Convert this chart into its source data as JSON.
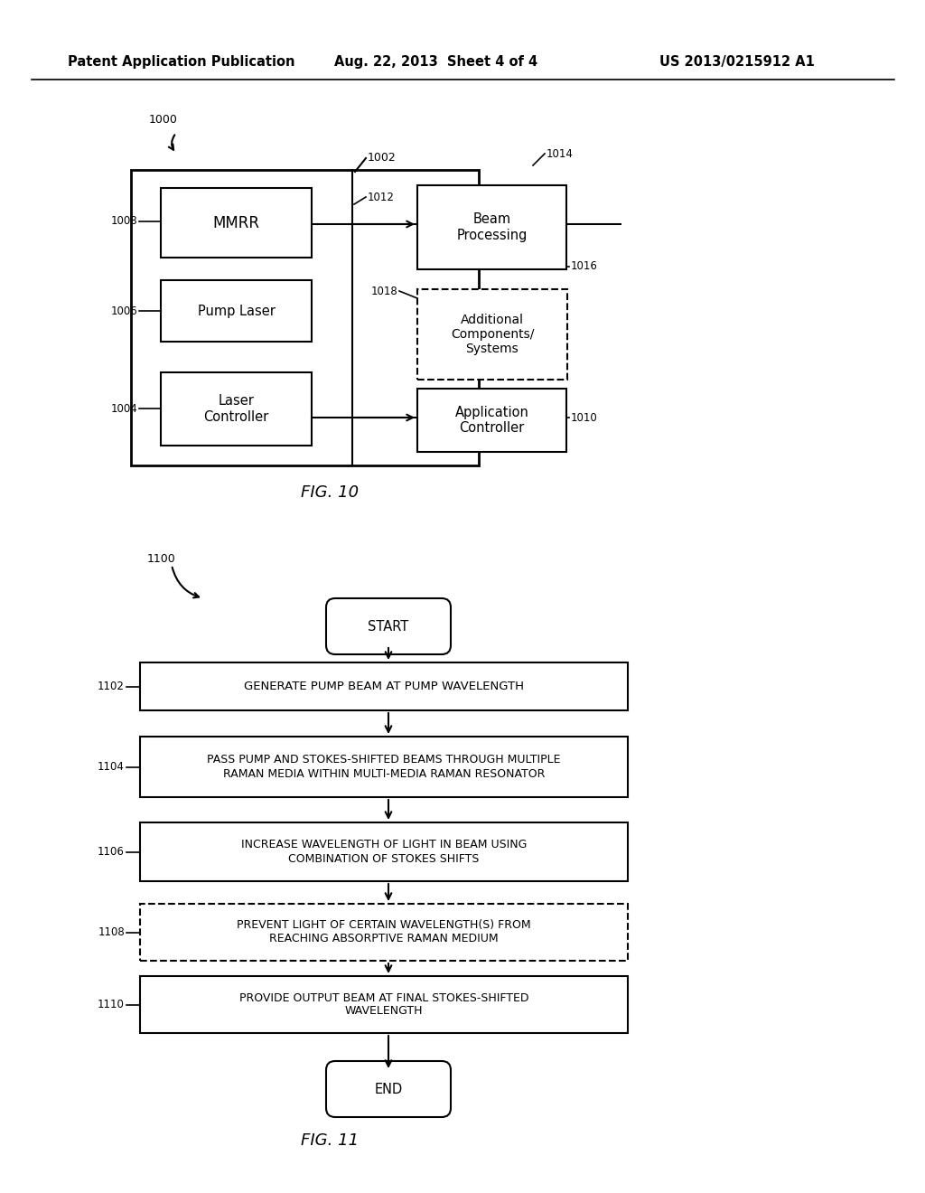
{
  "bg_color": "#ffffff",
  "header_text": "Patent Application Publication",
  "header_date": "Aug. 22, 2013  Sheet 4 of 4",
  "header_patent": "US 2013/0215912 A1",
  "fig10_label": "FIG. 10",
  "fig11_label": "FIG. 11",
  "fig10_ref": "1000",
  "fig10_ref2": "1002",
  "fig10_mmrr_ref": "1008",
  "fig10_mmrr_text": "MMRR",
  "fig10_pump_ref": "1006",
  "fig10_pump_text": "Pump Laser",
  "fig10_laser_ref": "1004",
  "fig10_laser_text": "Laser\nController",
  "fig10_beam_ref": "1014",
  "fig10_beam_text": "Beam\nProcessing",
  "fig10_beam_ref2": "1012",
  "fig10_beam_ref3": "1016",
  "fig10_addl_ref": "1018",
  "fig10_addl_text": "Additional\nComponents/\nSystems",
  "fig10_app_ref": "1010",
  "fig10_app_text": "Application\nController",
  "fig11_ref": "1100",
  "fig11_start": "START",
  "fig11_end": "END",
  "fig11_step1_ref": "1102",
  "fig11_step1_text": "GENERATE PUMP BEAM AT PUMP WAVELENGTH",
  "fig11_step2_ref": "1104",
  "fig11_step2_text": "PASS PUMP AND STOKES-SHIFTED BEAMS THROUGH MULTIPLE\nRAMAN MEDIA WITHIN MULTI-MEDIA RAMAN RESONATOR",
  "fig11_step3_ref": "1106",
  "fig11_step3_text": "INCREASE WAVELENGTH OF LIGHT IN BEAM USING\nCOMBINATION OF STOKES SHIFTS",
  "fig11_step4_ref": "1108",
  "fig11_step4_text": "PREVENT LIGHT OF CERTAIN WAVELENGTH(S) FROM\nREACHING ABSORPTIVE RAMAN MEDIUM",
  "fig11_step5_ref": "1110",
  "fig11_step5_text": "PROVIDE OUTPUT BEAM AT FINAL STOKES-SHIFTED\nWAVELENGTH"
}
